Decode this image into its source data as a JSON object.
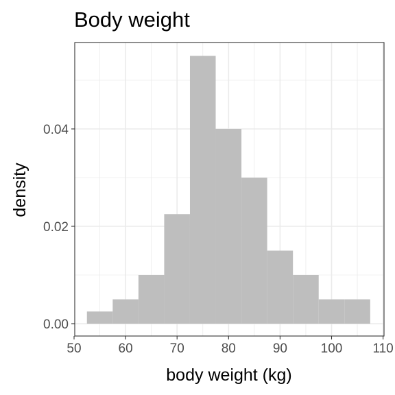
{
  "chart_data": {
    "type": "histogram",
    "title": "Body weight",
    "xlabel": "body weight (kg)",
    "ylabel": "density",
    "xlim": [
      50,
      110
    ],
    "ylim": [
      0,
      0.058
    ],
    "xticks": [
      50,
      60,
      70,
      80,
      90,
      100,
      110
    ],
    "xtick_labels": [
      "50",
      "60",
      "70",
      "80",
      "90",
      "100",
      "110"
    ],
    "yticks": [
      0,
      0.02,
      0.04
    ],
    "ytick_labels": [
      "0.00",
      "0.02",
      "0.04"
    ],
    "grid": true,
    "bin_width": 5,
    "bins": [
      {
        "x0": 52.5,
        "x1": 57.5,
        "density": 0.0025
      },
      {
        "x0": 57.5,
        "x1": 62.5,
        "density": 0.005
      },
      {
        "x0": 62.5,
        "x1": 67.5,
        "density": 0.01
      },
      {
        "x0": 67.5,
        "x1": 72.5,
        "density": 0.0225
      },
      {
        "x0": 72.5,
        "x1": 77.5,
        "density": 0.055
      },
      {
        "x0": 77.5,
        "x1": 82.5,
        "density": 0.04
      },
      {
        "x0": 82.5,
        "x1": 87.5,
        "density": 0.03
      },
      {
        "x0": 87.5,
        "x1": 92.5,
        "density": 0.015
      },
      {
        "x0": 92.5,
        "x1": 97.5,
        "density": 0.01
      },
      {
        "x0": 97.5,
        "x1": 102.5,
        "density": 0.005
      },
      {
        "x0": 102.5,
        "x1": 107.5,
        "density": 0.005
      }
    ],
    "colors": {
      "bar": "#bebebe",
      "grid": "#ebebeb",
      "panel_border": "#333333"
    }
  }
}
